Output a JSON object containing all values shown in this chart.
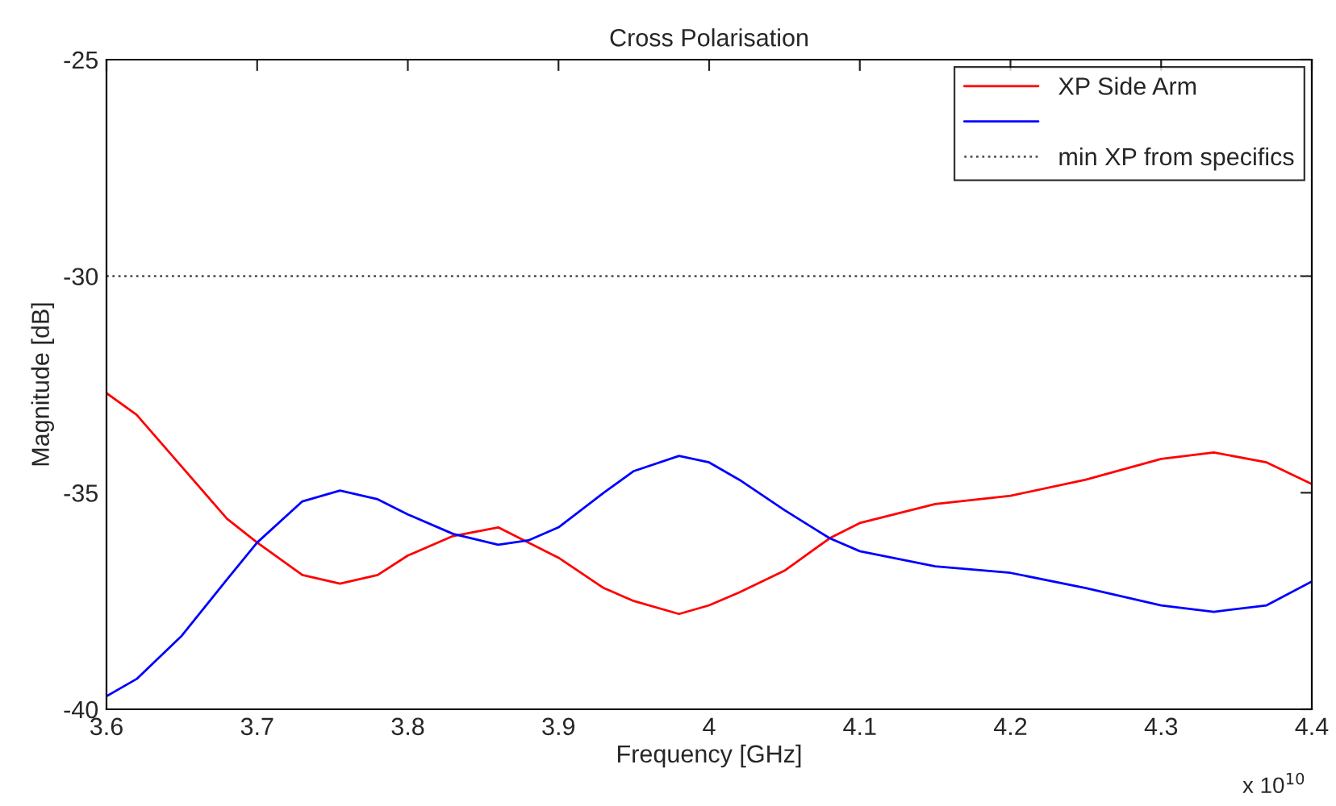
{
  "chart_data": {
    "type": "line",
    "title": "Cross Polarisation",
    "xlabel": "Frequency [GHz]",
    "ylabel": "Magnitude [dB]",
    "annotations": [
      "x 10$^{10}$"
    ],
    "series": [
      {
        "name": "XP Side Arm",
        "color": "#ff0000",
        "x": [
          3.6,
          3.62,
          3.65,
          3.68,
          3.7,
          3.73,
          3.755,
          3.78,
          3.8,
          3.83,
          3.86,
          3.9,
          3.93,
          3.95,
          3.98,
          4.0,
          4.02,
          4.05,
          4.08,
          4.1,
          4.15,
          4.2,
          4.25,
          4.3,
          4.335,
          4.37,
          4.4
        ],
        "values": [
          -32.7,
          -33.2,
          -34.4,
          -35.6,
          -36.15,
          -36.9,
          -37.1,
          -36.9,
          -36.45,
          -36.0,
          -35.8,
          -36.5,
          -37.2,
          -37.5,
          -37.8,
          -37.6,
          -37.3,
          -36.8,
          -36.05,
          -35.7,
          -35.26,
          -35.07,
          -34.7,
          -34.22,
          -34.07,
          -34.3,
          -34.8
        ]
      },
      {
        "color": "#0000ff",
        "x": [
          3.6,
          3.62,
          3.65,
          3.68,
          3.7,
          3.73,
          3.755,
          3.78,
          3.8,
          3.83,
          3.86,
          3.88,
          3.9,
          3.93,
          3.95,
          3.98,
          4.0,
          4.02,
          4.05,
          4.08,
          4.1,
          4.15,
          4.2,
          4.25,
          4.3,
          4.335,
          4.37,
          4.4
        ],
        "values": [
          -39.7,
          -39.3,
          -38.3,
          -37.0,
          -36.15,
          -35.2,
          -34.95,
          -35.15,
          -35.5,
          -35.95,
          -36.2,
          -36.1,
          -35.8,
          -35.0,
          -34.5,
          -34.15,
          -34.3,
          -34.7,
          -35.4,
          -36.05,
          -36.35,
          -36.7,
          -36.85,
          -37.2,
          -37.6,
          -37.75,
          -37.6,
          -37.05
        ]
      }
    ],
    "ref_lines": [
      {
        "axis": "y",
        "value": -30,
        "label": "min XP from specifics",
        "color": "#555555",
        "line_style": "dotted"
      }
    ],
    "xlim": [
      3.6,
      4.4
    ],
    "xticks": [
      3.6,
      3.7,
      3.8,
      3.9,
      4,
      4.1,
      4.2,
      4.3,
      4.4
    ],
    "ylim": [
      -40,
      -25
    ],
    "yticks": [
      -40,
      -35,
      -30,
      -25
    ],
    "grid": false,
    "legend": "top right",
    "marker": "none",
    "line_style": "solid"
  }
}
